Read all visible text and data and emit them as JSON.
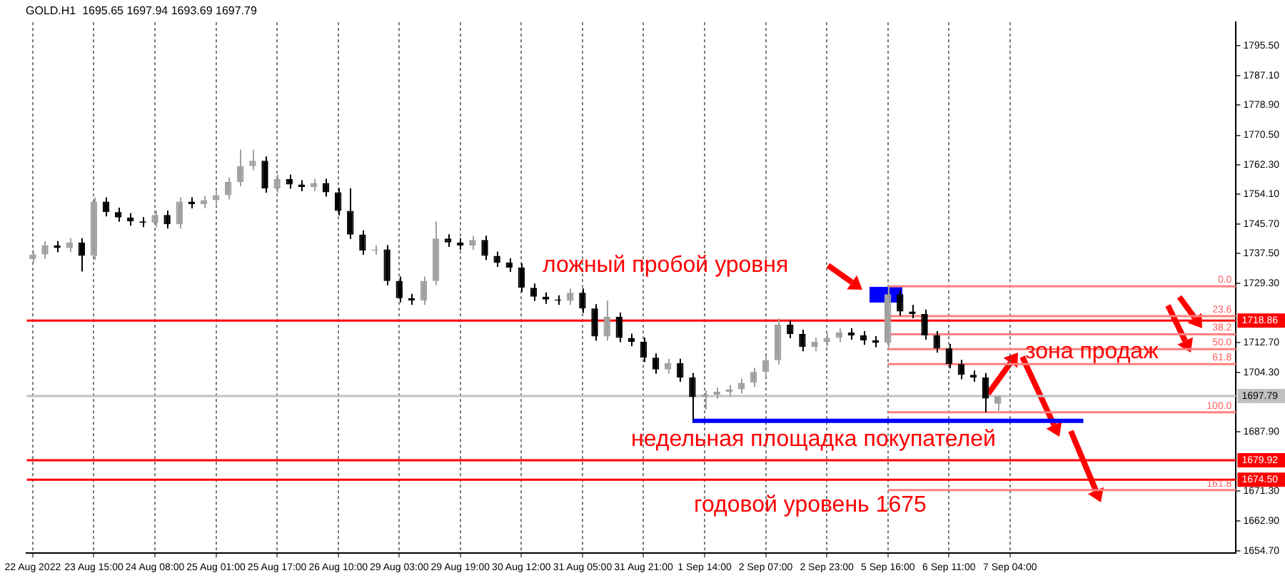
{
  "chart_data": {
    "type": "candlestick",
    "title": "GOLD.H1  1695.65 1697.94 1693.69 1697.79",
    "categories": [
      "22 Aug 2022",
      null,
      null,
      null,
      null,
      "23 Aug 15:00",
      null,
      null,
      null,
      null,
      "24 Aug 08:00",
      null,
      null,
      null,
      null,
      "25 Aug 01:00",
      null,
      null,
      null,
      null,
      "25 Aug 17:00",
      null,
      null,
      null,
      null,
      "26 Aug 10:00",
      null,
      null,
      null,
      null,
      "29 Aug 03:00",
      null,
      null,
      null,
      null,
      "29 Aug 19:00",
      null,
      null,
      null,
      null,
      "30 Aug 12:00",
      null,
      null,
      null,
      null,
      "31 Aug 05:00",
      null,
      null,
      null,
      null,
      "31 Aug 21:00",
      null,
      null,
      null,
      null,
      "1 Sep 14:00",
      null,
      null,
      null,
      null,
      "2 Sep 07:00",
      null,
      null,
      null,
      null,
      "2 Sep 23:00",
      null,
      null,
      null,
      null,
      "5 Sep 16:00",
      null,
      null,
      null,
      null,
      "6 Sep 11:00",
      null,
      null,
      null,
      null,
      "7 Sep 04:00",
      null,
      null,
      null,
      null,
      null,
      null,
      null,
      null,
      null,
      null,
      null,
      null,
      null,
      null,
      null,
      null,
      null,
      null
    ],
    "ohlc": [
      [
        1736.0,
        1738.5,
        1734.8,
        1737.3
      ],
      [
        1737.3,
        1741.0,
        1736.1,
        1739.8
      ],
      [
        1739.8,
        1741.0,
        1737.9,
        1739.1
      ],
      [
        1739.1,
        1741.8,
        1737.9,
        1740.6
      ],
      [
        1740.6,
        1741.8,
        1732.5,
        1736.9
      ],
      [
        1736.9,
        1753.2,
        1735.7,
        1752.0
      ],
      [
        1752.0,
        1753.2,
        1747.9,
        1749.1
      ],
      [
        1749.1,
        1750.3,
        1746.4,
        1747.6
      ],
      [
        1747.6,
        1748.8,
        1745.3,
        1746.5
      ],
      [
        1746.5,
        1747.7,
        1744.9,
        1746.1
      ],
      [
        1746.1,
        1749.5,
        1744.9,
        1748.3
      ],
      [
        1748.3,
        1749.5,
        1744.5,
        1745.7
      ],
      [
        1745.7,
        1753.2,
        1744.5,
        1752.0
      ],
      [
        1752.0,
        1753.2,
        1750.1,
        1751.3
      ],
      [
        1751.3,
        1753.6,
        1750.1,
        1752.4
      ],
      [
        1752.4,
        1755.0,
        1751.2,
        1753.8
      ],
      [
        1753.8,
        1758.7,
        1752.6,
        1757.5
      ],
      [
        1757.5,
        1766.5,
        1756.3,
        1761.9
      ],
      [
        1761.9,
        1766.5,
        1760.7,
        1763.4
      ],
      [
        1763.4,
        1764.6,
        1754.5,
        1755.7
      ],
      [
        1755.7,
        1759.5,
        1754.5,
        1758.3
      ],
      [
        1758.3,
        1759.5,
        1755.6,
        1756.8
      ],
      [
        1756.8,
        1758.0,
        1754.9,
        1756.1
      ],
      [
        1756.1,
        1758.4,
        1754.9,
        1757.2
      ],
      [
        1757.2,
        1758.4,
        1753.4,
        1754.6
      ],
      [
        1754.6,
        1755.8,
        1748.2,
        1749.4
      ],
      [
        1749.4,
        1755.7,
        1741.6,
        1742.8
      ],
      [
        1742.8,
        1744.0,
        1737.2,
        1738.4
      ],
      [
        1738.4,
        1739.9,
        1737.2,
        1738.7
      ],
      [
        1738.7,
        1739.9,
        1728.7,
        1729.9
      ],
      [
        1729.9,
        1731.1,
        1723.9,
        1725.1
      ],
      [
        1725.1,
        1726.3,
        1723.2,
        1724.4
      ],
      [
        1724.4,
        1731.1,
        1723.2,
        1729.9
      ],
      [
        1729.9,
        1746.5,
        1728.7,
        1741.7
      ],
      [
        1741.7,
        1742.9,
        1739.4,
        1740.6
      ],
      [
        1740.6,
        1741.8,
        1738.6,
        1739.8
      ],
      [
        1739.8,
        1742.5,
        1738.6,
        1741.3
      ],
      [
        1741.3,
        1742.5,
        1735.7,
        1736.9
      ],
      [
        1736.9,
        1738.1,
        1733.8,
        1735.0
      ],
      [
        1735.0,
        1736.2,
        1732.4,
        1733.6
      ],
      [
        1733.6,
        1734.8,
        1726.8,
        1728.0
      ],
      [
        1728.0,
        1729.2,
        1724.3,
        1725.5
      ],
      [
        1725.5,
        1726.7,
        1723.5,
        1724.7
      ],
      [
        1724.7,
        1725.9,
        1723.2,
        1724.4
      ],
      [
        1724.4,
        1727.8,
        1723.2,
        1726.6
      ],
      [
        1726.6,
        1727.8,
        1721.0,
        1722.2
      ],
      [
        1722.2,
        1723.4,
        1713.2,
        1714.4
      ],
      [
        1714.4,
        1724.4,
        1713.2,
        1719.9
      ],
      [
        1719.9,
        1721.1,
        1712.8,
        1714.0
      ],
      [
        1714.0,
        1715.2,
        1711.7,
        1712.9
      ],
      [
        1712.9,
        1714.1,
        1707.3,
        1708.5
      ],
      [
        1708.5,
        1709.7,
        1704.0,
        1705.2
      ],
      [
        1705.2,
        1708.2,
        1704.0,
        1707.0
      ],
      [
        1707.0,
        1708.2,
        1701.8,
        1703.0
      ],
      [
        1703.0,
        1704.2,
        1691.1,
        1697.5
      ],
      [
        1697.5,
        1699.4,
        1694.0,
        1698.2
      ],
      [
        1698.2,
        1700.2,
        1697.0,
        1699.0
      ],
      [
        1699.0,
        1700.9,
        1697.8,
        1699.7
      ],
      [
        1699.7,
        1702.7,
        1698.5,
        1701.5
      ],
      [
        1701.5,
        1705.7,
        1700.3,
        1704.5
      ],
      [
        1704.5,
        1709.0,
        1703.3,
        1707.8
      ],
      [
        1707.8,
        1719.5,
        1706.6,
        1717.7
      ],
      [
        1717.7,
        1718.9,
        1713.9,
        1715.1
      ],
      [
        1715.1,
        1716.3,
        1710.3,
        1711.5
      ],
      [
        1711.5,
        1714.1,
        1710.3,
        1712.9
      ],
      [
        1712.9,
        1715.2,
        1711.7,
        1714.0
      ],
      [
        1714.0,
        1716.7,
        1712.8,
        1715.5
      ],
      [
        1715.5,
        1716.7,
        1713.5,
        1714.7
      ],
      [
        1714.7,
        1715.9,
        1712.1,
        1713.3
      ],
      [
        1713.3,
        1714.5,
        1711.4,
        1712.6
      ],
      [
        1712.6,
        1728.4,
        1711.4,
        1726.2
      ],
      [
        1726.2,
        1727.4,
        1720.2,
        1721.4
      ],
      [
        1721.4,
        1723.2,
        1719.5,
        1720.7
      ],
      [
        1720.7,
        1721.9,
        1713.5,
        1714.7
      ],
      [
        1714.7,
        1715.9,
        1709.9,
        1711.1
      ],
      [
        1711.1,
        1712.3,
        1705.5,
        1706.7
      ],
      [
        1706.7,
        1707.9,
        1702.5,
        1703.7
      ],
      [
        1703.7,
        1704.9,
        1701.8,
        1703.0
      ],
      [
        1703.0,
        1704.2,
        1693.3,
        1697.1
      ],
      [
        1695.65,
        1697.94,
        1693.69,
        1697.79
      ],
      null,
      null,
      null,
      null,
      null,
      null,
      null,
      null,
      null,
      null,
      null,
      null,
      null,
      null,
      null,
      null,
      null,
      null,
      null
    ],
    "colors": [
      "#a0a0a0",
      "#a0a0a0",
      "#000000",
      "#a0a0a0",
      "#000000",
      "#a0a0a0",
      "#000000",
      "#000000",
      "#000000",
      "#000000",
      "#a0a0a0",
      "#000000",
      "#a0a0a0",
      "#000000",
      "#a0a0a0",
      "#a0a0a0",
      "#a0a0a0",
      "#a0a0a0",
      "#a0a0a0",
      "#000000",
      "#a0a0a0",
      "#000000",
      "#000000",
      "#a0a0a0",
      "#000000",
      "#000000",
      "#000000",
      "#000000",
      "#a0a0a0",
      "#000000",
      "#000000",
      "#000000",
      "#a0a0a0",
      "#a0a0a0",
      "#000000",
      "#000000",
      "#a0a0a0",
      "#000000",
      "#000000",
      "#000000",
      "#000000",
      "#000000",
      "#000000",
      "#000000",
      "#a0a0a0",
      "#000000",
      "#000000",
      "#a0a0a0",
      "#000000",
      "#000000",
      "#000000",
      "#000000",
      "#a0a0a0",
      "#000000",
      "#000000",
      "#a0a0a0",
      "#a0a0a0",
      "#a0a0a0",
      "#a0a0a0",
      "#a0a0a0",
      "#a0a0a0",
      "#a0a0a0",
      "#000000",
      "#000000",
      "#a0a0a0",
      "#a0a0a0",
      "#a0a0a0",
      "#000000",
      "#000000",
      "#000000",
      "#a0a0a0",
      "#000000",
      "#000000",
      "#000000",
      "#000000",
      "#000000",
      "#000000",
      "#000000",
      "#000000",
      "#a0a0a0",
      null,
      null,
      null,
      null,
      null,
      null,
      null,
      null,
      null,
      null,
      null,
      null,
      null,
      null,
      null,
      null,
      null,
      null,
      null
    ],
    "ylim": [
      1654,
      1802
    ],
    "yticks": [
      {
        "value": 1795.5,
        "label": "1795.50"
      },
      {
        "value": 1787.1,
        "label": "1787.10"
      },
      {
        "value": 1778.9,
        "label": "1778.90"
      },
      {
        "value": 1770.5,
        "label": "1770.50"
      },
      {
        "value": 1762.3,
        "label": "1762.30"
      },
      {
        "value": 1754.1,
        "label": "1754.10"
      },
      {
        "value": 1745.7,
        "label": "1745.70"
      },
      {
        "value": 1737.5,
        "label": "1737.50"
      },
      {
        "value": 1729.3,
        "label": "1729.30"
      },
      {
        "value": 1712.7,
        "label": "1712.70"
      },
      {
        "value": 1704.3,
        "label": "1704.30"
      },
      {
        "value": 1687.9,
        "label": "1687.90"
      },
      {
        "value": 1671.3,
        "label": "1671.30"
      },
      {
        "value": 1662.9,
        "label": "1662.90"
      },
      {
        "value": 1654.7,
        "label": "1654.70"
      }
    ],
    "grid": "x",
    "ref_lines": [
      {
        "axis": "y",
        "value": 1718.86,
        "label": "1718.86",
        "color": "#ff0000"
      },
      {
        "axis": "y",
        "value": 1679.92,
        "label": "1679.92",
        "color": "#ff0000"
      },
      {
        "axis": "y",
        "value": 1674.5,
        "label": "1674.50",
        "color": "#ff0000"
      },
      {
        "axis": "y",
        "value": 1697.79,
        "label": "1697.79",
        "color": "#c0c0c0"
      },
      {
        "axis": "y",
        "value": 1690.9,
        "color": "#0000ff"
      },
      {
        "axis": "y",
        "value": 1728.4,
        "color": "#ff8080"
      },
      {
        "axis": "y",
        "value": 1720.1,
        "color": "#ff8080"
      },
      {
        "axis": "y",
        "value": 1715.0,
        "color": "#ff8080"
      },
      {
        "axis": "y",
        "value": 1710.9,
        "color": "#ff8080"
      },
      {
        "axis": "y",
        "value": 1706.7,
        "color": "#ff8080"
      },
      {
        "axis": "y",
        "value": 1693.3,
        "color": "#ff8080"
      },
      {
        "axis": "y",
        "value": 1671.6,
        "color": "#ff8080"
      }
    ],
    "annotations": [
      "ложный пробой уровня",
      {
        "text": "зона продаж",
        "y": 1710.9
      },
      {
        "text": "недельная площадка покупателей",
        "y": 1690.9
      },
      {
        "text": "годовой уровень 1675",
        "y": 1674.5
      },
      {
        "text": "0.0",
        "y": 1728.4
      },
      {
        "text": "23.6",
        "y": 1720.1
      },
      {
        "text": "38.2",
        "y": 1715.0
      },
      {
        "text": "50.0",
        "y": 1710.9
      },
      {
        "text": "61.8",
        "y": 1706.7
      },
      {
        "text": "100.0",
        "y": 1693.3
      },
      {
        "text": "161.8",
        "y": 1671.6
      }
    ]
  }
}
